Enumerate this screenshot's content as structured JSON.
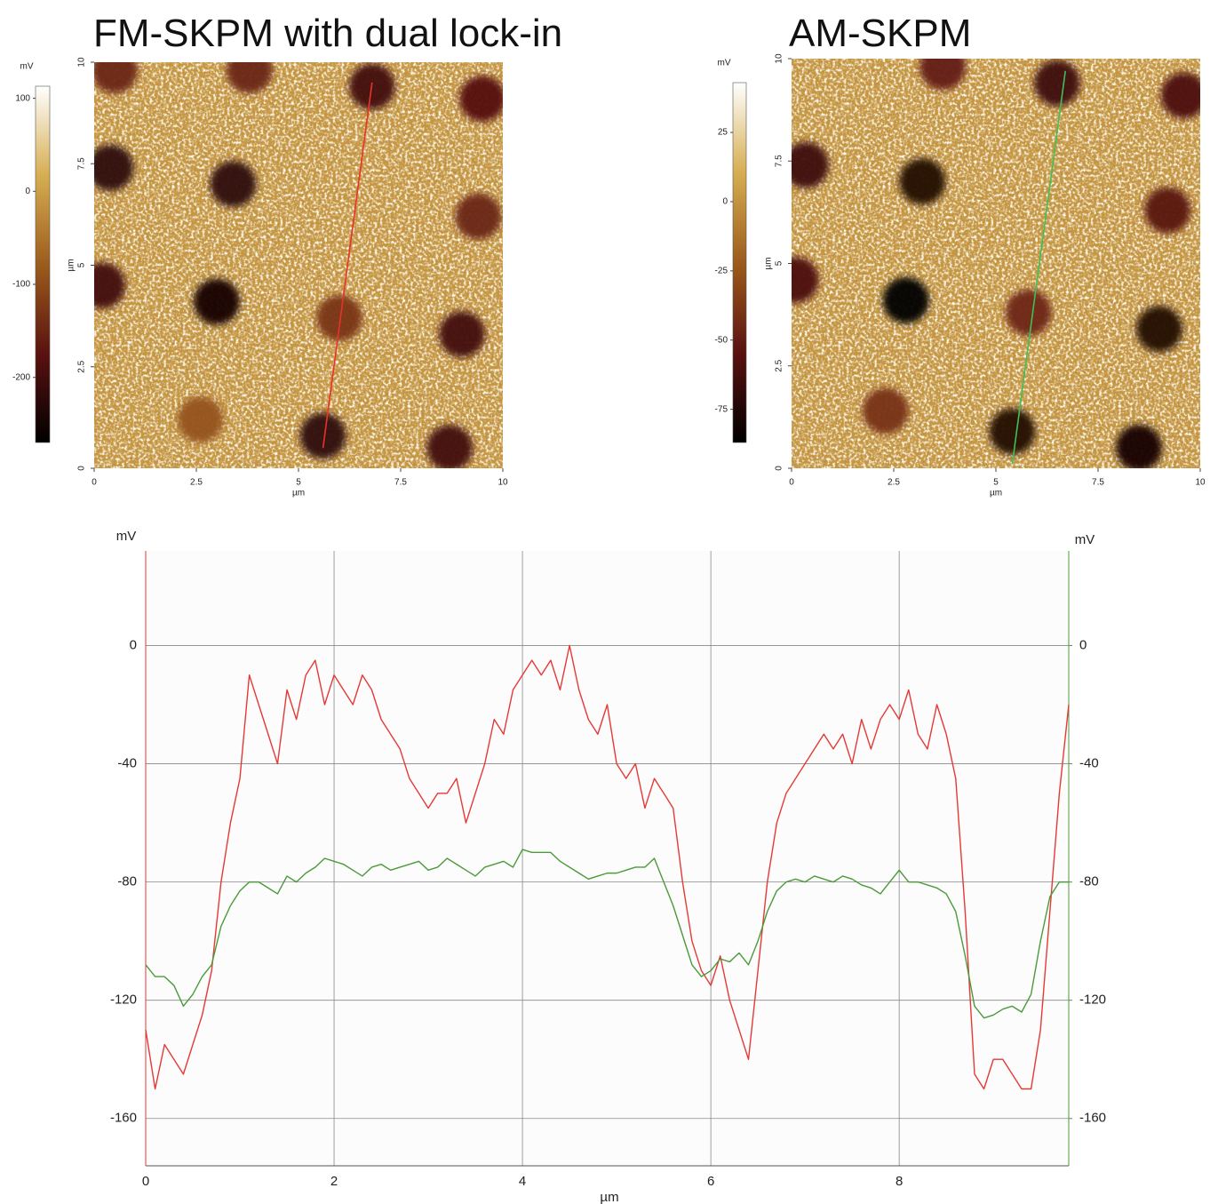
{
  "chart_data": [
    {
      "type": "heatmap",
      "title": "FM-SKPM with dual lock-in",
      "xlabel": "µm",
      "ylabel": "µm",
      "xlim": [
        0,
        10
      ],
      "ylim": [
        0,
        10
      ],
      "xticks": [
        0,
        2.5,
        5,
        7.5,
        10
      ],
      "yticks": [
        0,
        2.5,
        5,
        7.5,
        10
      ],
      "colorbar_label": "mV",
      "clim": [
        -270,
        113
      ],
      "cticks": [
        100,
        0,
        -100,
        -200
      ],
      "colormap": [
        "#000000",
        "#5a1210",
        "#9c5c1c",
        "#d6ae52",
        "#ffffff"
      ],
      "x": [
        6.8,
        9.5,
        0.4,
        3.4,
        9.4,
        0.2,
        3.0,
        6.0,
        9.0,
        2.6,
        5.6,
        8.7,
        3.8,
        0.5
      ],
      "y": [
        9.4,
        9.1,
        7.4,
        7.0,
        6.2,
        4.5,
        4.1,
        3.7,
        3.3,
        1.2,
        0.8,
        0.5,
        9.8,
        9.8
      ],
      "values": [
        -200,
        -180,
        -220,
        -220,
        -150,
        -200,
        -250,
        -130,
        -200,
        -90,
        -220,
        -200,
        -150,
        -150
      ],
      "profile": {
        "x": [
          5.6,
          6.8
        ],
        "y": [
          0.5,
          9.5
        ],
        "color": "#e8322b"
      }
    },
    {
      "type": "heatmap",
      "title": "AM-SKPM",
      "xlabel": "µm",
      "ylabel": "µm",
      "xlim": [
        0,
        10
      ],
      "ylim": [
        0,
        10
      ],
      "xticks": [
        0,
        2.5,
        5,
        7.5,
        10
      ],
      "yticks": [
        0,
        2.5,
        5,
        7.5,
        10
      ],
      "colorbar_label": "mV",
      "clim": [
        -87,
        43
      ],
      "cticks": [
        25,
        0,
        -25,
        -50,
        -75
      ],
      "colormap": [
        "#000000",
        "#5a1210",
        "#9c5c1c",
        "#d6ae52",
        "#ffffff"
      ],
      "x": [
        3.7,
        6.5,
        9.6,
        0.35,
        3.2,
        9.2,
        0.1,
        2.8,
        5.8,
        9.0,
        2.3,
        5.4,
        8.5
      ],
      "y": [
        9.8,
        9.4,
        9.1,
        7.4,
        7.0,
        6.3,
        4.6,
        4.1,
        3.8,
        3.4,
        1.4,
        0.9,
        0.5
      ],
      "values": [
        -50,
        -65,
        -60,
        -65,
        -75,
        -55,
        -60,
        -90,
        -45,
        -75,
        -40,
        -75,
        -80
      ],
      "profile": {
        "x": [
          5.4,
          6.7
        ],
        "y": [
          0.1,
          9.7
        ],
        "color": "#3fbf5a"
      }
    },
    {
      "type": "line",
      "xlabel": "µm",
      "ylabel": "mV",
      "y2label": "mV",
      "xlim": [
        0,
        9.8
      ],
      "ylim": [
        -176,
        32
      ],
      "y2lim": [
        -176,
        32
      ],
      "xticks": [
        0,
        2,
        4,
        6,
        8
      ],
      "yticks": [
        0,
        -40,
        -80,
        -120,
        -160
      ],
      "y2ticks": [
        0,
        -40,
        -80,
        -120,
        -160
      ],
      "grid": true,
      "x": [
        0,
        0.1,
        0.2,
        0.3,
        0.4,
        0.5,
        0.6,
        0.7,
        0.8,
        0.9,
        1,
        1.1,
        1.2,
        1.3,
        1.4,
        1.5,
        1.6,
        1.7,
        1.8,
        1.9,
        2,
        2.1,
        2.2,
        2.3,
        2.4,
        2.5,
        2.6,
        2.7,
        2.8,
        2.9,
        3,
        3.1,
        3.2,
        3.3,
        3.4,
        3.5,
        3.6,
        3.7,
        3.8,
        3.9,
        4,
        4.1,
        4.2,
        4.3,
        4.4,
        4.5,
        4.6,
        4.7,
        4.8,
        4.9,
        5,
        5.1,
        5.2,
        5.3,
        5.4,
        5.5,
        5.6,
        5.7,
        5.8,
        5.9,
        6,
        6.1,
        6.2,
        6.3,
        6.4,
        6.5,
        6.6,
        6.7,
        6.8,
        6.9,
        7,
        7.1,
        7.2,
        7.3,
        7.4,
        7.5,
        7.6,
        7.7,
        7.8,
        7.9,
        8,
        8.1,
        8.2,
        8.3,
        8.4,
        8.5,
        8.6,
        8.7,
        8.8,
        8.9,
        9,
        9.1,
        9.2,
        9.3,
        9.4,
        9.5,
        9.6,
        9.7,
        9.8
      ],
      "series": [
        {
          "color": "#e53935",
          "values": [
            -130,
            -150,
            -135,
            -140,
            -145,
            -135,
            -125,
            -110,
            -80,
            -60,
            -45,
            -10,
            -20,
            -30,
            -40,
            -15,
            -25,
            -10,
            -5,
            -20,
            -10,
            -15,
            -20,
            -10,
            -15,
            -25,
            -30,
            -35,
            -45,
            -50,
            -55,
            -50,
            -50,
            -45,
            -60,
            -50,
            -40,
            -25,
            -30,
            -15,
            -10,
            -5,
            -10,
            -5,
            -15,
            0,
            -15,
            -25,
            -30,
            -20,
            -40,
            -45,
            -40,
            -55,
            -45,
            -50,
            -55,
            -80,
            -100,
            -110,
            -115,
            -105,
            -120,
            -130,
            -140,
            -110,
            -80,
            -60,
            -50,
            -45,
            -40,
            -35,
            -30,
            -35,
            -30,
            -40,
            -25,
            -35,
            -25,
            -20,
            -25,
            -15,
            -30,
            -35,
            -20,
            -30,
            -45,
            -90,
            -145,
            -150,
            -140,
            -140,
            -145,
            -150,
            -150,
            -130,
            -90,
            -50,
            -20
          ]
        },
        {
          "color": "#4a9a3a",
          "axis": "y2",
          "values": [
            -108,
            -112,
            -112,
            -115,
            -122,
            -118,
            -112,
            -108,
            -95,
            -88,
            -83,
            -80,
            -80,
            -82,
            -84,
            -78,
            -80,
            -77,
            -75,
            -72,
            -73,
            -74,
            -76,
            -78,
            -75,
            -74,
            -76,
            -75,
            -74,
            -73,
            -76,
            -75,
            -72,
            -74,
            -76,
            -78,
            -75,
            -74,
            -73,
            -75,
            -69,
            -70,
            -70,
            -70,
            -73,
            -75,
            -77,
            -79,
            -78,
            -77,
            -77,
            -76,
            -75,
            -75,
            -72,
            -80,
            -88,
            -98,
            -108,
            -112,
            -110,
            -106,
            -107,
            -104,
            -108,
            -100,
            -90,
            -83,
            -80,
            -79,
            -80,
            -78,
            -79,
            -80,
            -78,
            -79,
            -81,
            -82,
            -84,
            -80,
            -76,
            -80,
            -80,
            -81,
            -82,
            -84,
            -90,
            -105,
            -122,
            -126,
            -125,
            -123,
            -122,
            -124,
            -118,
            -100,
            -85,
            -80,
            -80
          ]
        }
      ]
    }
  ]
}
